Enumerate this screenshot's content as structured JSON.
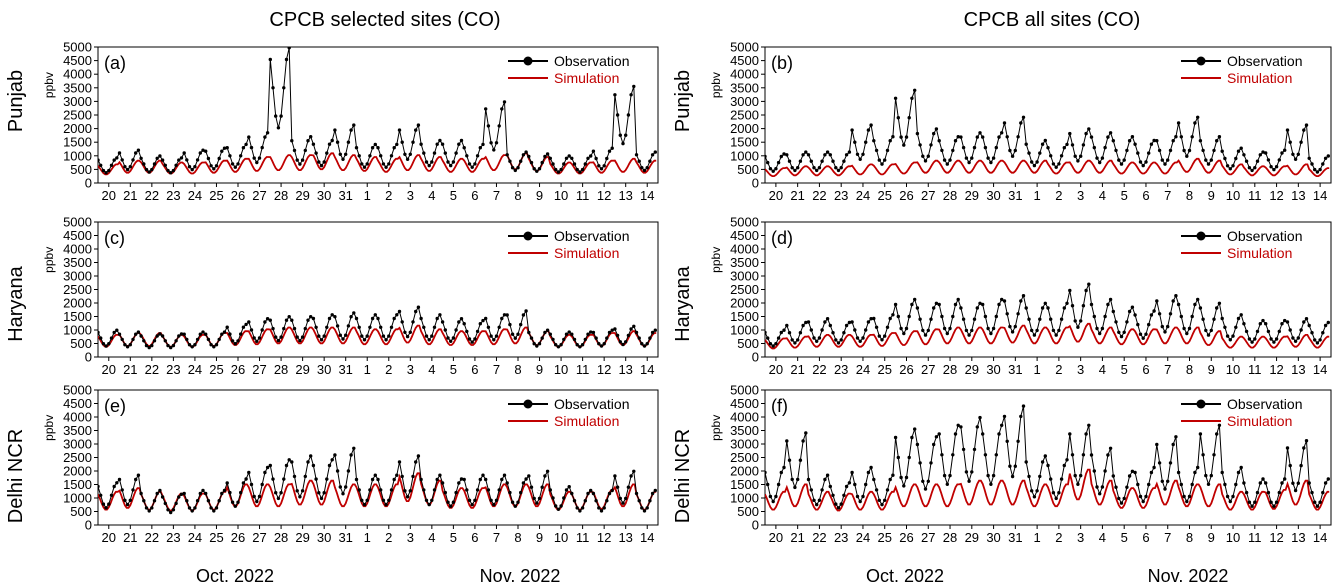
{
  "figure": {
    "columns": [
      "CPCB selected sites (CO)",
      "CPCB all sites (CO)"
    ],
    "rows": [
      "Punjab",
      "Haryana",
      "Delhi NCR"
    ],
    "ylabel": "ppbv",
    "month_labels": [
      "Oct. 2022",
      "Nov. 2022"
    ],
    "y_ticks": [
      "0",
      "500",
      "1000",
      "1500",
      "2000",
      "2500",
      "3000",
      "3500",
      "4000",
      "4500",
      "5000"
    ],
    "x_ticks": [
      "20",
      "21",
      "22",
      "23",
      "24",
      "25",
      "26",
      "27",
      "28",
      "29",
      "30",
      "31",
      "1",
      "2",
      "3",
      "4",
      "5",
      "6",
      "7",
      "8",
      "9",
      "10",
      "11",
      "12",
      "13",
      "14"
    ],
    "colors": {
      "observation": "#000000",
      "simulation": "#c00000"
    }
  },
  "chart_data": [
    {
      "type": "line",
      "panel_label": "(a)",
      "region": "Punjab",
      "column": "CPCB selected sites (CO)",
      "ylabel": "ppbv",
      "ylim": [
        0,
        5000
      ],
      "xlim": [
        "2022-10-20",
        "2022-11-14"
      ],
      "legend_position": "top-right",
      "series": [
        {
          "name": "Observation",
          "values": [
            650,
            850,
            700,
            650,
            850,
            900,
            1000,
            1300,
            3500,
            1200,
            1100,
            1500,
            1000,
            1000,
            1500,
            1100,
            1100,
            1000,
            2100,
            800,
            750,
            700,
            700,
            900,
            2500,
            800
          ]
        },
        {
          "name": "Simulation",
          "values": [
            500,
            600,
            600,
            550,
            550,
            600,
            650,
            700,
            750,
            750,
            800,
            750,
            700,
            650,
            750,
            700,
            650,
            650,
            750,
            800,
            700,
            550,
            550,
            600,
            650,
            600
          ]
        }
      ]
    },
    {
      "type": "line",
      "panel_label": "(b)",
      "region": "Punjab",
      "column": "CPCB all sites (CO)",
      "ylabel": "ppbv",
      "ylim": [
        0,
        5000
      ],
      "xlim": [
        "2022-10-20",
        "2022-11-14"
      ],
      "legend_position": "top-right",
      "series": [
        {
          "name": "Observation",
          "values": [
            750,
            800,
            800,
            800,
            1500,
            1200,
            2400,
            1400,
            1200,
            1300,
            1300,
            1700,
            1100,
            1000,
            1400,
            1300,
            1200,
            1100,
            1200,
            1700,
            1200,
            900,
            800,
            850,
            1500,
            700
          ]
        },
        {
          "name": "Simulation",
          "values": [
            400,
            450,
            450,
            450,
            500,
            500,
            550,
            600,
            600,
            600,
            600,
            600,
            600,
            550,
            600,
            600,
            550,
            550,
            550,
            650,
            600,
            500,
            450,
            450,
            500,
            400
          ]
        }
      ]
    },
    {
      "type": "line",
      "panel_label": "(c)",
      "region": "Haryana",
      "column": "CPCB selected sites (CO)",
      "ylabel": "ppbv",
      "ylim": [
        0,
        5000
      ],
      "xlim": [
        "2022-10-20",
        "2022-11-14"
      ],
      "legend_position": "top-right",
      "series": [
        {
          "name": "Observation",
          "values": [
            700,
            650,
            600,
            600,
            650,
            650,
            850,
            1000,
            1050,
            1050,
            1100,
            1150,
            1100,
            1100,
            1300,
            1100,
            1000,
            950,
            1100,
            1200,
            700,
            650,
            650,
            700,
            800,
            700
          ]
        },
        {
          "name": "Simulation",
          "values": [
            600,
            650,
            650,
            600,
            600,
            650,
            700,
            750,
            800,
            800,
            800,
            800,
            750,
            750,
            850,
            750,
            700,
            700,
            750,
            800,
            700,
            600,
            600,
            650,
            700,
            650
          ]
        }
      ]
    },
    {
      "type": "line",
      "panel_label": "(d)",
      "region": "Haryana",
      "column": "CPCB all sites (CO)",
      "ylabel": "ppbv",
      "ylim": [
        0,
        5000
      ],
      "xlim": [
        "2022-10-20",
        "2022-11-14"
      ],
      "legend_position": "top-right",
      "series": [
        {
          "name": "Observation",
          "values": [
            700,
            900,
            1000,
            900,
            1000,
            1100,
            1500,
            1400,
            1500,
            1400,
            1500,
            1600,
            1400,
            1400,
            1900,
            1500,
            1300,
            1200,
            1600,
            1500,
            1400,
            1100,
            950,
            950,
            1000,
            900
          ]
        },
        {
          "name": "Simulation",
          "values": [
            500,
            550,
            600,
            600,
            600,
            650,
            700,
            750,
            800,
            800,
            800,
            850,
            800,
            800,
            900,
            800,
            750,
            750,
            800,
            800,
            700,
            550,
            550,
            550,
            600,
            550
          ]
        }
      ]
    },
    {
      "type": "line",
      "panel_label": "(e)",
      "region": "Delhi NCR",
      "column": "CPCB selected sites (CO)",
      "ylabel": "ppbv",
      "ylim": [
        0,
        5000
      ],
      "xlim": [
        "2022-10-20",
        "2022-11-14"
      ],
      "legend_position": "top-right",
      "series": [
        {
          "name": "Observation",
          "values": [
            1100,
            1300,
            900,
            800,
            900,
            900,
            1200,
            1500,
            1700,
            1800,
            1700,
            2000,
            1300,
            1300,
            1800,
            1300,
            1200,
            1300,
            1300,
            1200,
            1400,
            1000,
            900,
            900,
            1400,
            900
          ]
        },
        {
          "name": "Simulation",
          "values": [
            900,
            1000,
            900,
            850,
            850,
            900,
            1100,
            1100,
            1100,
            1200,
            1200,
            1100,
            1100,
            1100,
            1400,
            1200,
            1000,
            1000,
            1100,
            1100,
            1100,
            900,
            900,
            950,
            1100,
            900
          ]
        }
      ]
    },
    {
      "type": "line",
      "panel_label": "(f)",
      "region": "Delhi NCR",
      "column": "CPCB all sites (CO)",
      "ylabel": "ppbv",
      "ylim": [
        0,
        5000
      ],
      "xlim": [
        "2022-10-20",
        "2022-11-14"
      ],
      "legend_position": "top-right",
      "series": [
        {
          "name": "Observation",
          "values": [
            1500,
            2400,
            1300,
            1100,
            1500,
            1300,
            2500,
            2300,
            2600,
            2800,
            2600,
            3100,
            1800,
            1700,
            2600,
            2000,
            1400,
            1500,
            2300,
            1500,
            2600,
            1500,
            1200,
            1200,
            2200,
            1200
          ]
        },
        {
          "name": "Simulation",
          "values": [
            900,
            1100,
            900,
            850,
            900,
            900,
            1100,
            1100,
            1100,
            1200,
            1200,
            1200,
            1100,
            1100,
            1500,
            1200,
            1000,
            1000,
            1200,
            1100,
            1100,
            900,
            900,
            950,
            1200,
            900
          ]
        }
      ]
    }
  ]
}
